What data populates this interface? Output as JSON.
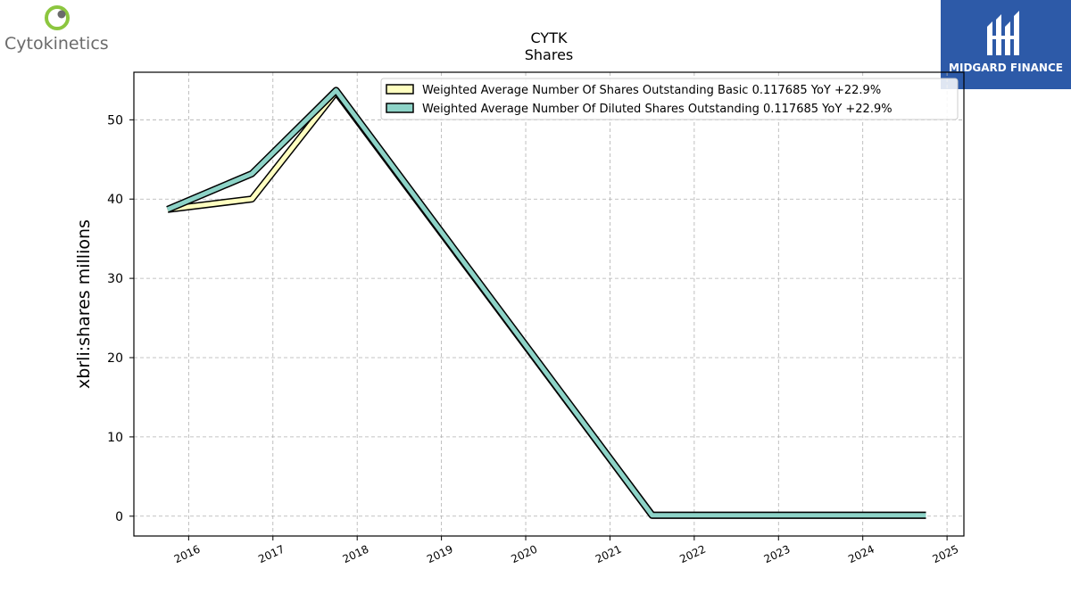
{
  "branding": {
    "left_logo": "Cytokinetics",
    "right_logo": "MIDGARD FINANCE",
    "accent_green": "#8cc63f",
    "accent_blue": "#2d5aa8"
  },
  "chart_data": {
    "type": "line",
    "title": "CYTK",
    "subtitle": "Shares",
    "ylabel": "xbrli:shares millions",
    "xlabel": "",
    "ylim": [
      -2.5,
      56
    ],
    "xlim": [
      2015.35,
      2025.2
    ],
    "yticks": [
      0,
      10,
      20,
      30,
      40,
      50
    ],
    "xticks": [
      2016,
      2017,
      2018,
      2019,
      2020,
      2021,
      2022,
      2023,
      2024,
      2025
    ],
    "grid": true,
    "legend_position": "top-right",
    "series": [
      {
        "name": "Weighted Average Number Of Shares Outstanding Basic  0.117685 YoY +22.9%",
        "color": "#ffffc0",
        "x": [
          2015.75,
          2016.75,
          2017.75,
          2021.5,
          2024.75
        ],
        "values": [
          38.7,
          40.0,
          53.5,
          0.12,
          0.117685
        ]
      },
      {
        "name": "Weighted Average Number Of Diluted Shares Outstanding  0.117685 YoY +22.9%",
        "color": "#8dd3c7",
        "x": [
          2015.75,
          2016.75,
          2017.75,
          2021.5,
          2024.75
        ],
        "values": [
          38.7,
          43.2,
          53.7,
          0.12,
          0.117685
        ]
      }
    ]
  }
}
